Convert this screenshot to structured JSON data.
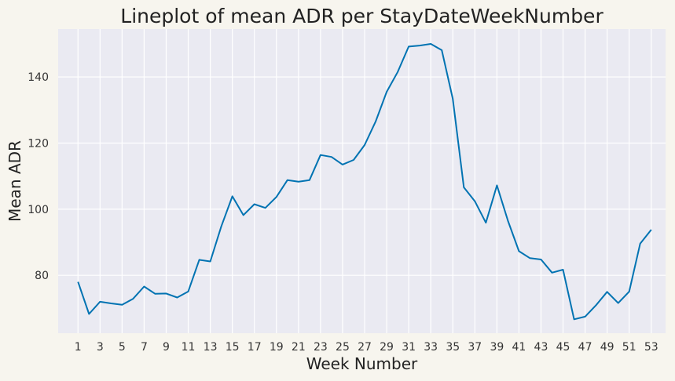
{
  "chart_data": {
    "type": "line",
    "title": "Lineplot of mean ADR per StayDateWeekNumber",
    "xlabel": "Week Number",
    "ylabel": "Mean ADR",
    "xlim": [
      -0.8,
      54.3
    ],
    "ylim": [
      62.5,
      154.5
    ],
    "x_ticks": [
      "1",
      "3",
      "5",
      "7",
      "9",
      "11",
      "13",
      "15",
      "17",
      "19",
      "21",
      "23",
      "25",
      "27",
      "29",
      "31",
      "33",
      "35",
      "37",
      "39",
      "41",
      "43",
      "45",
      "47",
      "49",
      "51",
      "53"
    ],
    "y_ticks": [
      "80",
      "100",
      "120",
      "140"
    ],
    "grid": true,
    "background": "#eaeaf2",
    "line_color": "#0173b2",
    "series": [
      {
        "name": "",
        "x": [
          1,
          2,
          3,
          4,
          5,
          6,
          7,
          8,
          9,
          10,
          11,
          12,
          13,
          14,
          15,
          16,
          17,
          18,
          19,
          20,
          21,
          22,
          23,
          24,
          25,
          26,
          27,
          28,
          29,
          30,
          31,
          32,
          33,
          34,
          35,
          36,
          37,
          38,
          39,
          40,
          41,
          42,
          43,
          44,
          45,
          46,
          47,
          48,
          49,
          50,
          51,
          52,
          53
        ],
        "values": [
          78.0,
          68.3,
          72.0,
          71.5,
          71.1,
          72.9,
          76.6,
          74.4,
          74.5,
          73.3,
          75.1,
          84.7,
          84.2,
          94.8,
          103.9,
          98.2,
          101.5,
          100.4,
          103.7,
          108.8,
          108.3,
          108.8,
          116.4,
          115.8,
          113.5,
          114.9,
          119.4,
          126.5,
          135.5,
          141.5,
          149.2,
          149.5,
          150.0,
          148.1,
          133.4,
          106.6,
          102.4,
          95.9,
          107.2,
          96.5,
          87.3,
          85.2,
          84.8,
          80.8,
          81.7,
          66.7,
          67.5,
          71.0,
          75.0,
          71.6,
          75.1,
          89.6,
          93.8
        ]
      }
    ]
  }
}
